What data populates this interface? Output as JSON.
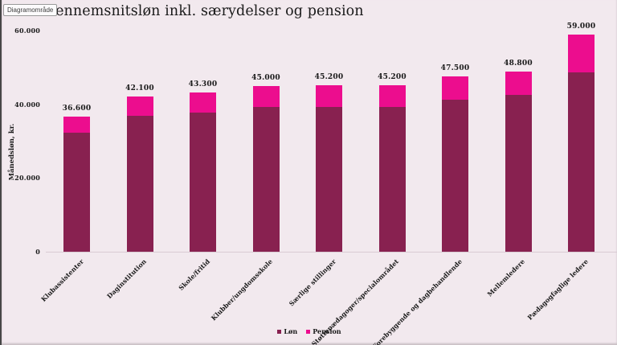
{
  "window": {
    "tooltip": "Diagramområde"
  },
  "chart_data": {
    "type": "bar",
    "stacked": true,
    "title": "Gennemsnitsløn inkl. særydelser og pension",
    "xlabel": "",
    "ylabel": "Månedsløn, kr.",
    "ylim": [
      0,
      60000
    ],
    "yticks": [
      0,
      20000,
      40000,
      60000
    ],
    "ytick_labels": [
      "0",
      "20.000",
      "40.000",
      "60.000"
    ],
    "grid": false,
    "legend_position": "bottom",
    "categories": [
      "Klubassistenter",
      "Daginstitution",
      "Skole/fritid",
      "Klubber/ungdomsskole",
      "Særlige stillinger",
      "Støttepædagoger/specialområdet",
      "Forebyggende og dagbehandlende",
      "Mellemledere",
      "Pædagogfaglige ledere"
    ],
    "series": [
      {
        "name": "Løn",
        "color": "#882150",
        "values": [
          32200,
          36900,
          37700,
          39200,
          39200,
          39200,
          41200,
          42500,
          48700
        ]
      },
      {
        "name": "Pension",
        "color": "#ec0d8e",
        "values": [
          4400,
          5200,
          5600,
          5800,
          6000,
          6000,
          6300,
          6300,
          10300
        ]
      }
    ],
    "totals": [
      36600,
      42100,
      43300,
      45000,
      45200,
      45200,
      47500,
      48800,
      59000
    ],
    "total_labels": [
      "36.600",
      "42.100",
      "43.300",
      "45.000",
      "45.200",
      "45.200",
      "47.500",
      "48.800",
      "59.000"
    ]
  },
  "colors": {
    "background": "#f2e9ee",
    "lon": "#882150",
    "pension": "#ec0d8e",
    "text": "#1a1a1a",
    "axis_line": "#d9cbd3"
  }
}
